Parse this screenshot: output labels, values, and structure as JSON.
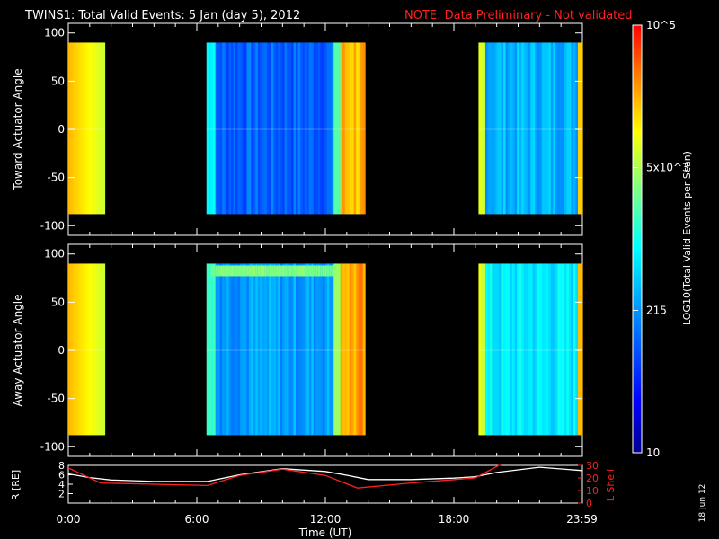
{
  "header": {
    "title": "TWINS1: Total Valid Events:  5 Jan (day   5), 2012",
    "note": "NOTE: Data Preliminary - Not validated",
    "note_color": "#ff2020"
  },
  "side_date": "18 Jun 12",
  "chart_data": [
    {
      "type": "heatmap",
      "panel": "top",
      "ylabel": "Toward Actuator Angle",
      "ylim": [
        -110,
        110
      ],
      "yticks": [
        "100",
        "50",
        "0",
        "-50",
        "-100"
      ],
      "y_extent": [
        -88,
        90
      ],
      "xlim_hours": [
        0,
        24
      ],
      "segments": [
        {
          "start": 0.0,
          "end": 1.7,
          "level_start": 0.82,
          "level_end": 0.7
        },
        {
          "start": 6.45,
          "end": 12.7,
          "level": 0.26,
          "edge_level": 0.47
        },
        {
          "start": 12.7,
          "end": 13.85,
          "level": 0.82
        },
        {
          "start": 19.15,
          "end": 24.0,
          "level": 0.38,
          "edge_level": 0.7
        }
      ]
    },
    {
      "type": "heatmap",
      "panel": "middle",
      "ylabel": "Away Actuator Angle",
      "ylim": [
        -110,
        110
      ],
      "yticks": [
        "100",
        "50",
        "0",
        "-50",
        "-100"
      ],
      "y_extent": [
        -88,
        90
      ],
      "xlim_hours": [
        0,
        24
      ],
      "segments": [
        {
          "start": 0.0,
          "end": 1.7,
          "level_start": 0.82,
          "level_end": 0.7
        },
        {
          "start": 6.45,
          "end": 12.7,
          "level": 0.35,
          "edge_level": 0.55,
          "top_band_level": 0.62
        },
        {
          "start": 12.7,
          "end": 13.85,
          "level": 0.84
        },
        {
          "start": 19.15,
          "end": 24.0,
          "level": 0.45,
          "edge_level": 0.72
        }
      ]
    },
    {
      "type": "line",
      "panel": "bottom",
      "ylabel_left": "R [RE]",
      "ylabel_right": "L Shell",
      "left_yticks": [
        "8",
        "6",
        "4",
        "2"
      ],
      "right_yticks": [
        "30",
        "20",
        "10",
        "0"
      ],
      "left_ylim": [
        0,
        8
      ],
      "right_ylim": [
        0,
        30
      ],
      "xlim_hours": [
        0,
        24
      ],
      "xlabel": "Time (UT)",
      "xticks": [
        "0:00",
        "6:00",
        "12:00",
        "18:00",
        "23:59"
      ],
      "series": [
        {
          "axis": "left",
          "color": "#ffffff",
          "x": [
            0,
            1,
            2,
            4,
            6.5,
            8,
            10,
            12,
            13,
            14,
            16,
            18,
            19,
            20,
            22,
            24
          ],
          "y": [
            6.2,
            5.4,
            4.9,
            4.6,
            4.6,
            6.0,
            7.3,
            6.7,
            5.9,
            5.0,
            5.0,
            5.3,
            5.6,
            6.5,
            7.6,
            6.9
          ]
        },
        {
          "axis": "right",
          "color": "#ff2020",
          "x": [
            0,
            1.5,
            6.5,
            8,
            10,
            12,
            13.5,
            16,
            19,
            20.1,
            20.2
          ],
          "y": [
            28,
            16,
            14,
            22,
            27,
            22,
            12,
            16,
            20,
            30,
            30
          ]
        }
      ]
    },
    {
      "type": "colorbar",
      "title": "LOG10(Total Valid Events per Scan)",
      "tick_labels": [
        "10",
        "215",
        "5x10^3",
        "10^5"
      ],
      "tick_fracs": [
        0.0,
        0.333,
        0.667,
        1.0
      ]
    }
  ]
}
